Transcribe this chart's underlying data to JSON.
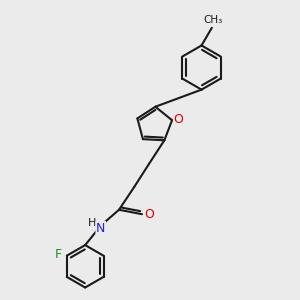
{
  "bg_color": "#ebebeb",
  "bond_color": "#1a1a1a",
  "atom_colors": {
    "O": "#e00000",
    "N": "#2020e0",
    "F": "#209020",
    "C": "#1a1a1a",
    "H": "#1a1a1a"
  },
  "lw": 1.5
}
